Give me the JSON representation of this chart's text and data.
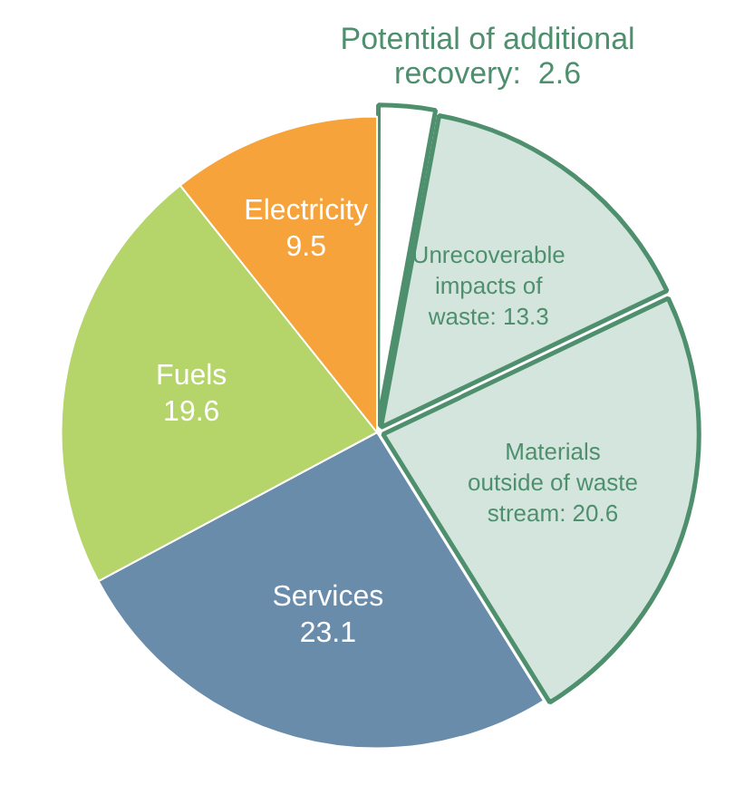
{
  "chart_data": {
    "type": "pie",
    "categories": [
      "Potential of additional recovery",
      "Unrecoverable impacts of waste",
      "Materials outside of waste stream",
      "Services",
      "Fuels",
      "Electricity"
    ],
    "values": [
      2.6,
      13.3,
      20.6,
      23.1,
      19.6,
      9.5
    ],
    "colors": [
      "#ffffff",
      "#d3e5dc",
      "#d3e5dc",
      "#6a8cab",
      "#b5d56a",
      "#f7a33b"
    ],
    "value_labels": [
      ":  2.6",
      ": 13.3",
      ": 20.6",
      "23.1",
      "19.6",
      "9.5"
    ],
    "legend": false
  }
}
